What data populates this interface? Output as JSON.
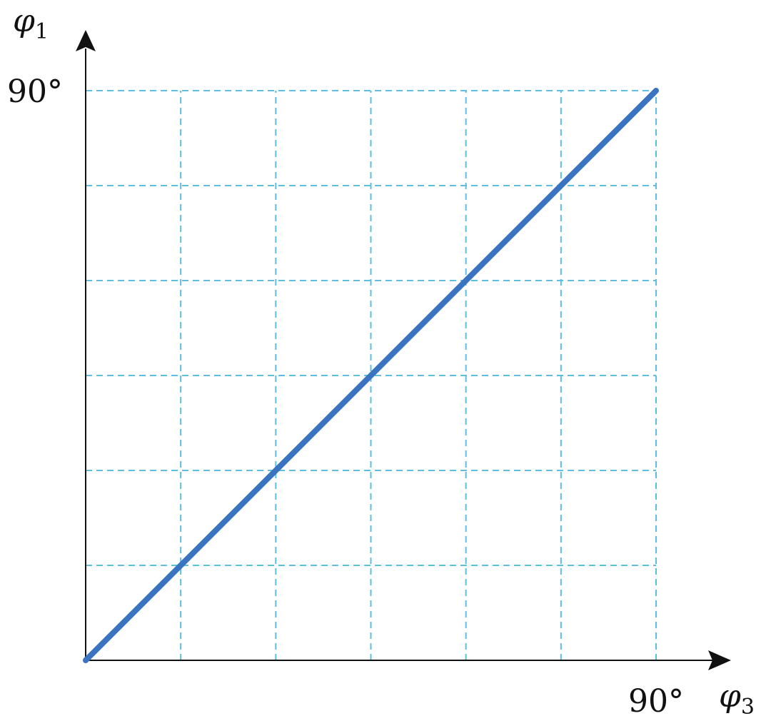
{
  "chart_data": {
    "type": "line",
    "xlabel": {
      "symbol": "φ",
      "subscript": "3"
    },
    "ylabel": {
      "symbol": "φ",
      "subscript": "1"
    },
    "xlim": [
      0,
      90
    ],
    "ylim": [
      0,
      90
    ],
    "x_tick_labels": [
      "90°"
    ],
    "y_tick_labels": [
      "90°"
    ],
    "x_tick_values": [
      90
    ],
    "y_tick_values": [
      90
    ],
    "grid": true,
    "grid_divisions": 6,
    "series": [
      {
        "x": [
          0,
          90
        ],
        "y": [
          0,
          90
        ]
      }
    ]
  },
  "colors": {
    "line": "#3a74c0",
    "grid": "#5bbfe0",
    "axis": "#111111",
    "text": "#111111"
  }
}
